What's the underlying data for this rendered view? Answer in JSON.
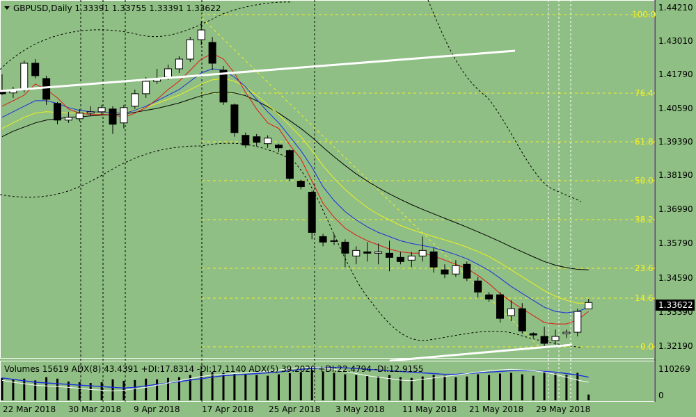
{
  "header": {
    "symbol_line": "GBPUSD,Daily  1.33391 1.33755 1.33391 1.33622",
    "collapse_icon": "triangle-down-icon"
  },
  "price_axis": {
    "labels": [
      "1.44210",
      "1.43010",
      "1.41790",
      "1.40590",
      "1.39390",
      "1.38190",
      "1.36990",
      "1.35790",
      "1.34590",
      "1.33390",
      "1.32190"
    ],
    "current_price": "1.33622"
  },
  "fibonacci": {
    "levels": [
      "100.0",
      "76.4",
      "61.8",
      "50.0",
      "38.2",
      "23.6",
      "14.6",
      "0.0"
    ]
  },
  "sub_window": {
    "info_line": "Volumes 15619  ADX(8) 43.4391 +DI:17.8314 -DI:17.1140  ADX(5) 39.2020 +DI:22.4794 -DI:12.9155",
    "axis_labels": [
      "110269",
      "0"
    ]
  },
  "time_axis": {
    "labels": [
      "22 Mar 2018",
      "30 Mar 2018",
      "9 Apr 2018",
      "17 Apr 2018",
      "25 Apr 2018",
      "3 May 2018",
      "11 May 2018",
      "21 May 2018",
      "29 May 2018"
    ]
  },
  "colors": {
    "background": "#8fbf84",
    "fib_level": "#f4ef2c",
    "ma_fast": "#e01818",
    "ma_mid": "#1a2ee0",
    "ma_slow": "#f0f020",
    "ma_long": "#000000",
    "trendline": "#ffffff"
  },
  "chart_data": {
    "type": "candlestick",
    "symbol": "GBPUSD",
    "timeframe": "Daily",
    "ohlc_last": {
      "open": 1.33391,
      "high": 1.33755,
      "low": 1.33391,
      "close": 1.33622
    },
    "y_range": [
      1.319,
      1.4433
    ],
    "candles": [
      {
        "o": 1.4125,
        "h": 1.4185,
        "l": 1.411,
        "c": 1.4115
      },
      {
        "o": 1.4118,
        "h": 1.414,
        "l": 1.41,
        "c": 1.413
      },
      {
        "o": 1.413,
        "h": 1.4235,
        "l": 1.412,
        "c": 1.4225
      },
      {
        "o": 1.4225,
        "h": 1.424,
        "l": 1.417,
        "c": 1.418
      },
      {
        "o": 1.417,
        "h": 1.418,
        "l": 1.4075,
        "c": 1.4095
      },
      {
        "o": 1.408,
        "h": 1.4085,
        "l": 1.4005,
        "c": 1.402
      },
      {
        "o": 1.402,
        "h": 1.405,
        "l": 1.401,
        "c": 1.403
      },
      {
        "o": 1.4025,
        "h": 1.406,
        "l": 1.4015,
        "c": 1.4045
      },
      {
        "o": 1.4045,
        "h": 1.407,
        "l": 1.4035,
        "c": 1.405
      },
      {
        "o": 1.405,
        "h": 1.4075,
        "l": 1.404,
        "c": 1.4065
      },
      {
        "o": 1.406,
        "h": 1.407,
        "l": 1.397,
        "c": 1.4005
      },
      {
        "o": 1.401,
        "h": 1.4075,
        "l": 1.399,
        "c": 1.4065
      },
      {
        "o": 1.407,
        "h": 1.413,
        "l": 1.406,
        "c": 1.4115
      },
      {
        "o": 1.4115,
        "h": 1.4175,
        "l": 1.41,
        "c": 1.416
      },
      {
        "o": 1.416,
        "h": 1.4205,
        "l": 1.415,
        "c": 1.417
      },
      {
        "o": 1.4175,
        "h": 1.422,
        "l": 1.4165,
        "c": 1.4205
      },
      {
        "o": 1.4205,
        "h": 1.425,
        "l": 1.419,
        "c": 1.424
      },
      {
        "o": 1.424,
        "h": 1.432,
        "l": 1.423,
        "c": 1.431
      },
      {
        "o": 1.431,
        "h": 1.4376,
        "l": 1.429,
        "c": 1.4345
      },
      {
        "o": 1.43,
        "h": 1.432,
        "l": 1.42,
        "c": 1.4225
      },
      {
        "o": 1.42,
        "h": 1.4215,
        "l": 1.4075,
        "c": 1.4085
      },
      {
        "o": 1.4075,
        "h": 1.408,
        "l": 1.396,
        "c": 1.3975
      },
      {
        "o": 1.3965,
        "h": 1.3975,
        "l": 1.392,
        "c": 1.393
      },
      {
        "o": 1.396,
        "h": 1.397,
        "l": 1.3925,
        "c": 1.394
      },
      {
        "o": 1.3935,
        "h": 1.3965,
        "l": 1.392,
        "c": 1.3955
      },
      {
        "o": 1.393,
        "h": 1.3935,
        "l": 1.3905,
        "c": 1.392
      },
      {
        "o": 1.391,
        "h": 1.3915,
        "l": 1.38,
        "c": 1.381
      },
      {
        "o": 1.38,
        "h": 1.3805,
        "l": 1.377,
        "c": 1.378
      },
      {
        "o": 1.376,
        "h": 1.3765,
        "l": 1.359,
        "c": 1.3615
      },
      {
        "o": 1.36,
        "h": 1.361,
        "l": 1.3565,
        "c": 1.358
      },
      {
        "o": 1.3585,
        "h": 1.361,
        "l": 1.357,
        "c": 1.3585
      },
      {
        "o": 1.358,
        "h": 1.359,
        "l": 1.349,
        "c": 1.354
      },
      {
        "o": 1.353,
        "h": 1.3565,
        "l": 1.35,
        "c": 1.355
      },
      {
        "o": 1.3545,
        "h": 1.358,
        "l": 1.351,
        "c": 1.354
      },
      {
        "o": 1.354,
        "h": 1.3575,
        "l": 1.35,
        "c": 1.3545
      },
      {
        "o": 1.354,
        "h": 1.3585,
        "l": 1.3475,
        "c": 1.3525
      },
      {
        "o": 1.3525,
        "h": 1.3545,
        "l": 1.35,
        "c": 1.351
      },
      {
        "o": 1.3515,
        "h": 1.3545,
        "l": 1.349,
        "c": 1.353
      },
      {
        "o": 1.353,
        "h": 1.36,
        "l": 1.351,
        "c": 1.355
      },
      {
        "o": 1.3545,
        "h": 1.356,
        "l": 1.347,
        "c": 1.349
      },
      {
        "o": 1.348,
        "h": 1.35,
        "l": 1.345,
        "c": 1.3465
      },
      {
        "o": 1.3465,
        "h": 1.3515,
        "l": 1.3455,
        "c": 1.3495
      },
      {
        "o": 1.35,
        "h": 1.351,
        "l": 1.344,
        "c": 1.345
      },
      {
        "o": 1.344,
        "h": 1.3455,
        "l": 1.338,
        "c": 1.34
      },
      {
        "o": 1.339,
        "h": 1.34,
        "l": 1.3365,
        "c": 1.3375
      },
      {
        "o": 1.339,
        "h": 1.34,
        "l": 1.329,
        "c": 1.3305
      },
      {
        "o": 1.3315,
        "h": 1.337,
        "l": 1.3295,
        "c": 1.334
      },
      {
        "o": 1.334,
        "h": 1.336,
        "l": 1.325,
        "c": 1.326
      },
      {
        "o": 1.325,
        "h": 1.3255,
        "l": 1.3235,
        "c": 1.3245
      },
      {
        "o": 1.324,
        "h": 1.3275,
        "l": 1.3205,
        "c": 1.3215
      },
      {
        "o": 1.3225,
        "h": 1.3265,
        "l": 1.321,
        "c": 1.324
      },
      {
        "o": 1.325,
        "h": 1.3265,
        "l": 1.3235,
        "c": 1.3255
      },
      {
        "o": 1.3255,
        "h": 1.334,
        "l": 1.324,
        "c": 1.333
      },
      {
        "o": 1.33391,
        "h": 1.33755,
        "l": 1.33391,
        "c": 1.33622
      }
    ],
    "ma_fast": [
      1.407,
      1.409,
      1.411,
      1.415,
      1.413,
      1.41,
      1.406,
      1.4045,
      1.404,
      1.404,
      1.404,
      1.403,
      1.4045,
      1.4065,
      1.4095,
      1.413,
      1.416,
      1.42,
      1.424,
      1.426,
      1.424,
      1.419,
      1.412,
      1.406,
      1.401,
      1.399,
      1.393,
      1.388,
      1.38,
      1.372,
      1.367,
      1.363,
      1.3605,
      1.3585,
      1.357,
      1.3555,
      1.3545,
      1.354,
      1.354,
      1.353,
      1.3515,
      1.35,
      1.3485,
      1.346,
      1.343,
      1.3395,
      1.3365,
      1.334,
      1.3315,
      1.329,
      1.3285,
      1.3285,
      1.33,
      1.333
    ],
    "ma_mid": [
      1.403,
      1.405,
      1.407,
      1.409,
      1.409,
      1.408,
      1.4065,
      1.4055,
      1.405,
      1.4048,
      1.4048,
      1.4045,
      1.4055,
      1.407,
      1.409,
      1.411,
      1.413,
      1.416,
      1.419,
      1.4205,
      1.42,
      1.4175,
      1.414,
      1.4095,
      1.405,
      1.401,
      1.396,
      1.391,
      1.385,
      1.378,
      1.373,
      1.369,
      1.366,
      1.3635,
      1.3615,
      1.36,
      1.3585,
      1.3575,
      1.3568,
      1.356,
      1.3548,
      1.3535,
      1.352,
      1.35,
      1.3478,
      1.345,
      1.342,
      1.3395,
      1.337,
      1.3345,
      1.333,
      1.3325,
      1.333,
      1.3345
    ],
    "ma_slow": [
      1.399,
      1.401,
      1.403,
      1.4045,
      1.405,
      1.4048,
      1.4045,
      1.4045,
      1.4045,
      1.4045,
      1.4048,
      1.4048,
      1.4055,
      1.4065,
      1.408,
      1.4095,
      1.411,
      1.413,
      1.415,
      1.4165,
      1.417,
      1.416,
      1.414,
      1.411,
      1.4075,
      1.404,
      1.4,
      1.396,
      1.391,
      1.3855,
      1.381,
      1.377,
      1.3735,
      1.3705,
      1.368,
      1.366,
      1.364,
      1.3625,
      1.3612,
      1.36,
      1.3588,
      1.3576,
      1.3562,
      1.3546,
      1.3528,
      1.3505,
      1.348,
      1.3455,
      1.343,
      1.3405,
      1.3385,
      1.337,
      1.336,
      1.336
    ],
    "ma_long": [
      1.396,
      1.398,
      1.3995,
      1.401,
      1.402,
      1.4025,
      1.403,
      1.4032,
      1.4035,
      1.4038,
      1.404,
      1.4042,
      1.4048,
      1.4055,
      1.4062,
      1.4072,
      1.4082,
      1.4095,
      1.4108,
      1.4118,
      1.4122,
      1.4118,
      1.4108,
      1.409,
      1.4068,
      1.4045,
      1.4018,
      1.399,
      1.3958,
      1.3922,
      1.3888,
      1.3856,
      1.3826,
      1.38,
      1.3776,
      1.3754,
      1.3734,
      1.3715,
      1.3698,
      1.3682,
      1.3666,
      1.365,
      1.3634,
      1.3617,
      1.36,
      1.3582,
      1.3563,
      1.3545,
      1.3527,
      1.351,
      1.3497,
      1.3488,
      1.3482,
      1.348
    ],
    "volumes": [
      62,
      58,
      60,
      55,
      64,
      60,
      52,
      50,
      48,
      50,
      58,
      54,
      56,
      60,
      58,
      62,
      64,
      70,
      80,
      78,
      76,
      74,
      72,
      70,
      68,
      72,
      75,
      78,
      84,
      80,
      76,
      72,
      70,
      68,
      66,
      70,
      64,
      62,
      66,
      70,
      68,
      64,
      66,
      72,
      70,
      74,
      76,
      72,
      68,
      80,
      74,
      70,
      76,
      16
    ],
    "adx8": [
      0.62,
      0.58,
      0.54,
      0.5,
      0.48,
      0.46,
      0.44,
      0.42,
      0.4,
      0.38,
      0.36,
      0.34,
      0.36,
      0.4,
      0.44,
      0.48,
      0.52,
      0.56,
      0.6,
      0.64,
      0.68,
      0.7,
      0.72,
      0.74,
      0.76,
      0.78,
      0.82,
      0.86,
      0.88,
      0.9,
      0.91,
      0.9,
      0.88,
      0.86,
      0.84,
      0.82,
      0.8,
      0.78,
      0.76,
      0.74,
      0.72,
      0.72,
      0.74,
      0.76,
      0.78,
      0.8,
      0.82,
      0.82,
      0.82,
      0.8,
      0.78,
      0.74,
      0.7,
      0.64
    ],
    "adx5": [
      0.55,
      0.5,
      0.46,
      0.42,
      0.4,
      0.38,
      0.36,
      0.33,
      0.3,
      0.28,
      0.26,
      0.28,
      0.32,
      0.36,
      0.42,
      0.48,
      0.54,
      0.6,
      0.66,
      0.7,
      0.72,
      0.74,
      0.76,
      0.78,
      0.8,
      0.84,
      0.88,
      0.9,
      0.92,
      0.9,
      0.86,
      0.8,
      0.74,
      0.68,
      0.64,
      0.6,
      0.56,
      0.54,
      0.58,
      0.62,
      0.66,
      0.7,
      0.74,
      0.78,
      0.82,
      0.84,
      0.86,
      0.84,
      0.82,
      0.78,
      0.72,
      0.64,
      0.56,
      0.5
    ]
  }
}
